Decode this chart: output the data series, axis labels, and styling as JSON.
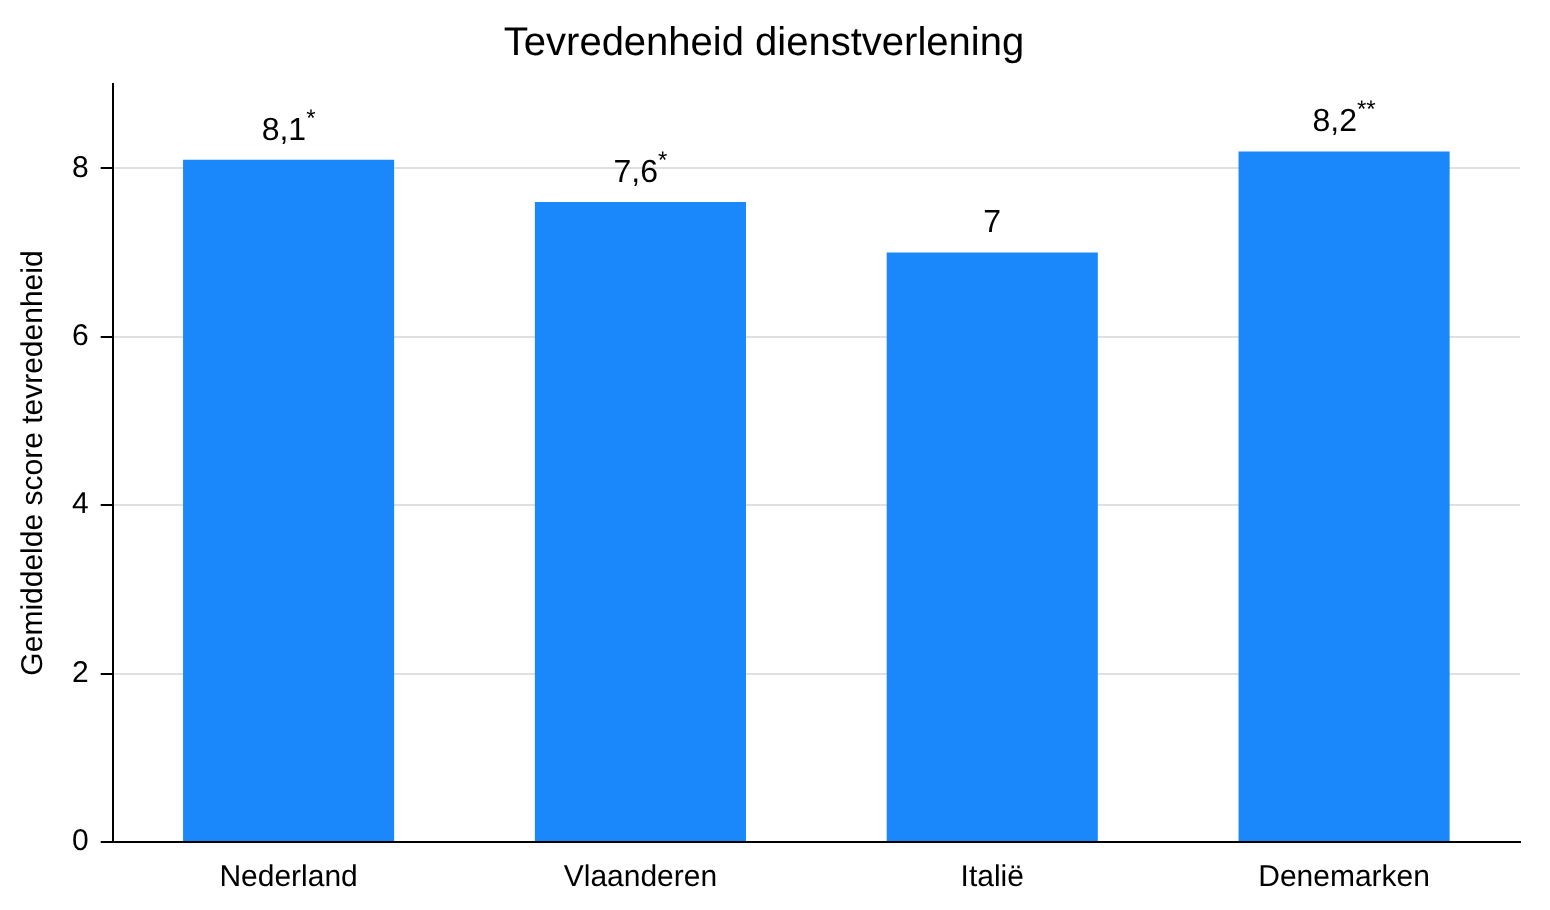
{
  "chart_data": {
    "type": "bar",
    "title": "Tevredenheid dienstverlening",
    "ylabel": "Gemiddelde score tevredenheid",
    "categories": [
      "Nederland",
      "Vlaanderen",
      "Italië",
      "Denemarken"
    ],
    "values": [
      8.1,
      7.6,
      7,
      8.2
    ],
    "color": "#1a87fb",
    "value_labels": [
      "8,1$^{*}$",
      "7,6$^{*}$",
      "7",
      "8,2$^{**}$"
    ],
    "ylim": [
      0,
      9
    ],
    "yticks": [
      0,
      2,
      4,
      6,
      8
    ],
    "grid": "y",
    "legend": false
  }
}
